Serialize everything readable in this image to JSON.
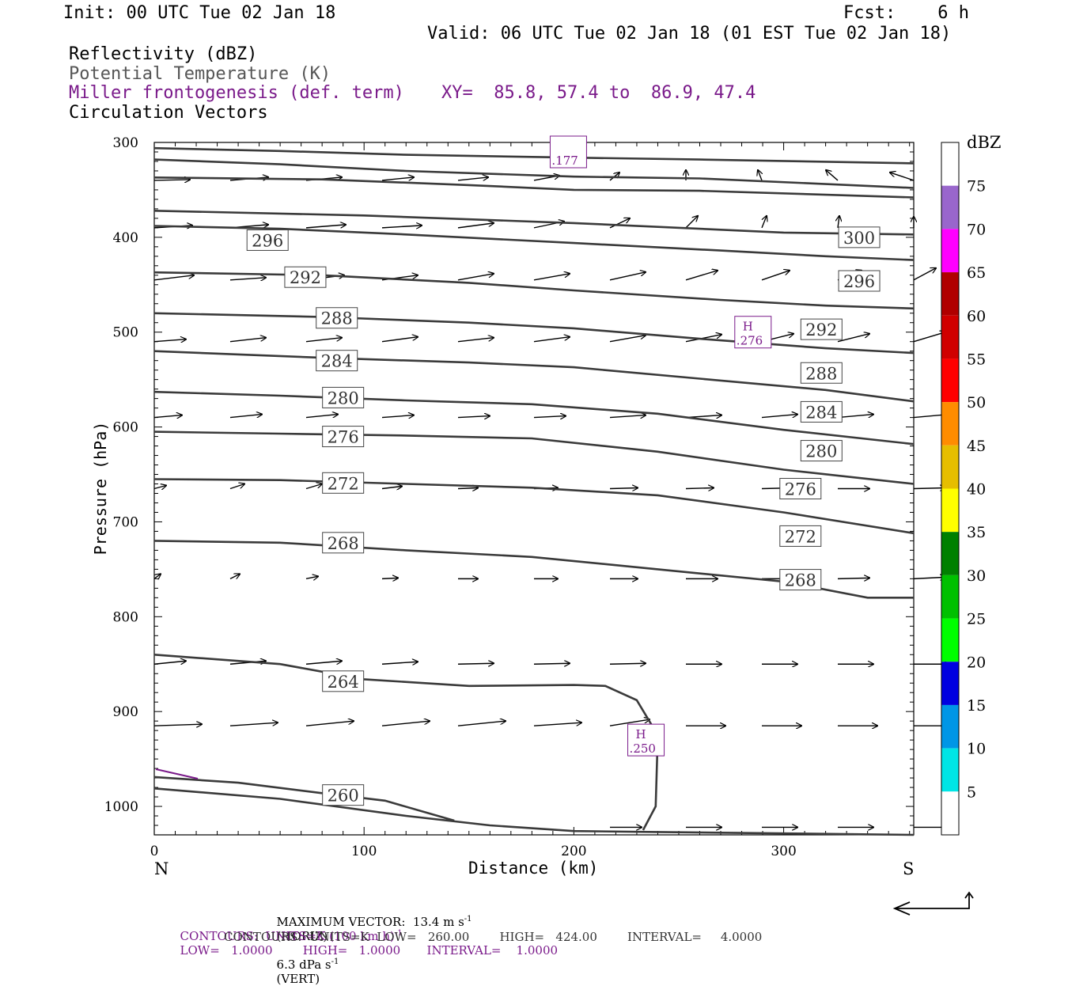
{
  "header": {
    "init": "Init: 00 UTC Tue 02 Jan 18",
    "fcst": "Fcst:    6 h",
    "valid": "Valid: 06 UTC Tue 02 Jan 18 (01 EST Tue 02 Jan 18)",
    "fields": [
      {
        "text": "Reflectivity (dBZ)",
        "color": "#000000"
      },
      {
        "text": "Potential Temperature (K)",
        "color": "#555555"
      },
      {
        "text": "Miller frontogenesis (def. term)",
        "color": "#7a1a8a"
      },
      {
        "text": "Circulation Vectors",
        "color": "#000000"
      }
    ],
    "xy": "XY=  85.8, 57.4 to  86.9, 47.4"
  },
  "footer": {
    "max_vector": "MAXIMUM VECTOR:  13.4 m s",
    "max_vector_sup": "-1",
    "max_vector_h": "(HORIZ)",
    "max_vector_v": "6.3 dPa s",
    "max_vector_v_sup": "-1",
    "max_vector_v2": "(VERT)",
    "contours_fg": "CONTOURS:  UNITS=K (100 km h)",
    "contours_fg_sup": "-1",
    "contours_fg_rest": "LOW=   1.0000        HIGH=   1.0000       INTERVAL=    1.0000",
    "contours_th": "CONTOURS:  UNITS=K  LOW=   260.00        HIGH=   424.00        INTERVAL=     4.0000"
  },
  "chart_data": {
    "type": "cross-section",
    "xlabel": "Distance (km)",
    "ylabel": "Pressure (hPa)",
    "xlim": [
      0,
      362
    ],
    "ylim": [
      1030,
      300
    ],
    "x_ticks": [
      0,
      100,
      200,
      300
    ],
    "y_ticks": [
      300,
      400,
      500,
      600,
      700,
      800,
      900,
      1000
    ],
    "x_end_labels": {
      "left": "N",
      "right": "S"
    },
    "colorbar": {
      "unit": "dBZ",
      "levels": [
        5,
        10,
        15,
        20,
        25,
        30,
        35,
        40,
        45,
        50,
        55,
        60,
        65,
        70,
        75
      ],
      "colors": [
        "#ffffff",
        "#00e5e5",
        "#0096e6",
        "#0000e0",
        "#00ff00",
        "#00c000",
        "#008000",
        "#ffff00",
        "#e6be00",
        "#ff8c00",
        "#ff0000",
        "#d00000",
        "#b00000",
        "#ff00ff",
        "#9966cc",
        "#ffffff"
      ]
    },
    "theta_contours": [
      {
        "value": 300,
        "label": "300",
        "points": [
          [
            0,
            306
          ],
          [
            60,
            309
          ],
          [
            120,
            313
          ],
          [
            200,
            316
          ],
          [
            260,
            318
          ],
          [
            362,
            322
          ]
        ]
      },
      {
        "value": "",
        "points": [
          [
            0,
            318
          ],
          [
            60,
            323
          ],
          [
            120,
            330
          ],
          [
            200,
            336
          ],
          [
            260,
            338
          ],
          [
            362,
            348
          ]
        ]
      },
      {
        "value": "",
        "points": [
          [
            0,
            337
          ],
          [
            80,
            339
          ],
          [
            150,
            345
          ],
          [
            200,
            350
          ],
          [
            260,
            351
          ],
          [
            362,
            358
          ]
        ]
      },
      {
        "value": "",
        "points": [
          [
            0,
            372
          ],
          [
            100,
            377
          ],
          [
            200,
            385
          ],
          [
            300,
            395
          ],
          [
            362,
            397
          ]
        ]
      },
      {
        "value": 296,
        "label": "296",
        "label_at": [
          54,
          403
        ],
        "points": [
          [
            0,
            388
          ],
          [
            60,
            391
          ],
          [
            120,
            397
          ],
          [
            200,
            406
          ],
          [
            270,
            414
          ],
          [
            320,
            420
          ],
          [
            362,
            424
          ]
        ]
      },
      {
        "value": 292,
        "label": "292",
        "label_at": [
          72,
          442
        ],
        "points": [
          [
            0,
            437
          ],
          [
            80,
            440
          ],
          [
            150,
            448
          ],
          [
            200,
            456
          ],
          [
            270,
            466
          ],
          [
            320,
            472
          ],
          [
            362,
            475
          ]
        ]
      },
      {
        "value": 288,
        "label": "288",
        "label_at": [
          87,
          485
        ],
        "points": [
          [
            0,
            480
          ],
          [
            80,
            484
          ],
          [
            150,
            490
          ],
          [
            200,
            496
          ],
          [
            260,
            507
          ],
          [
            320,
            517
          ],
          [
            362,
            522
          ]
        ]
      },
      {
        "value": 284,
        "label": "284",
        "label_at": [
          87,
          530
        ],
        "points": [
          [
            0,
            520
          ],
          [
            80,
            527
          ],
          [
            150,
            532
          ],
          [
            200,
            537
          ],
          [
            260,
            549
          ],
          [
            320,
            561
          ],
          [
            362,
            573
          ]
        ]
      },
      {
        "value": 280,
        "label": "280",
        "label_at": [
          90,
          569
        ],
        "points": [
          [
            0,
            563
          ],
          [
            60,
            567
          ],
          [
            120,
            572
          ],
          [
            180,
            576
          ],
          [
            240,
            586
          ],
          [
            300,
            603
          ],
          [
            362,
            618
          ]
        ]
      },
      {
        "value": 276,
        "label": "276",
        "label_at": [
          90,
          610
        ],
        "points": [
          [
            0,
            605
          ],
          [
            60,
            607
          ],
          [
            120,
            609
          ],
          [
            180,
            612
          ],
          [
            240,
            626
          ],
          [
            300,
            645
          ],
          [
            362,
            660
          ]
        ]
      },
      {
        "value": 272,
        "label": "272",
        "label_at": [
          90,
          659
        ],
        "points": [
          [
            0,
            655
          ],
          [
            60,
            656
          ],
          [
            120,
            660
          ],
          [
            180,
            664
          ],
          [
            240,
            672
          ],
          [
            300,
            690
          ],
          [
            362,
            712
          ]
        ]
      },
      {
        "value": 268,
        "label": "268",
        "label_at": [
          90,
          722
        ],
        "points": [
          [
            0,
            720
          ],
          [
            60,
            722
          ],
          [
            120,
            730
          ],
          [
            180,
            737
          ],
          [
            240,
            750
          ],
          [
            300,
            763
          ],
          [
            340,
            780
          ],
          [
            362,
            780
          ]
        ]
      },
      {
        "value": 264,
        "label": "264",
        "label_at": [
          90,
          868
        ],
        "points": [
          [
            0,
            840
          ],
          [
            60,
            850
          ],
          [
            100,
            866
          ],
          [
            150,
            873
          ],
          [
            200,
            872
          ],
          [
            215,
            873
          ],
          [
            230,
            888
          ],
          [
            240,
            925
          ],
          [
            239,
            1000
          ],
          [
            233,
            1025
          ]
        ]
      },
      {
        "value": 260,
        "label": "260",
        "label_at": [
          90,
          988
        ],
        "points": [
          [
            0,
            969
          ],
          [
            40,
            975
          ],
          [
            80,
            986
          ],
          [
            110,
            994
          ],
          [
            143,
            1015
          ]
        ]
      },
      {
        "value": "",
        "points": [
          [
            0,
            981
          ],
          [
            60,
            992
          ],
          [
            120,
            1010
          ],
          [
            160,
            1020
          ],
          [
            200,
            1026
          ],
          [
            240,
            1027
          ],
          [
            362,
            1030
          ]
        ]
      }
    ],
    "frontogenesis_maxima": [
      {
        "label": "H",
        "value": ".276",
        "x": 285,
        "p": 500
      },
      {
        "label": "H",
        "value": ".250",
        "x": 234,
        "p": 930
      },
      {
        "label": "",
        "value": ".177",
        "x": 197,
        "p": 310
      }
    ]
  }
}
